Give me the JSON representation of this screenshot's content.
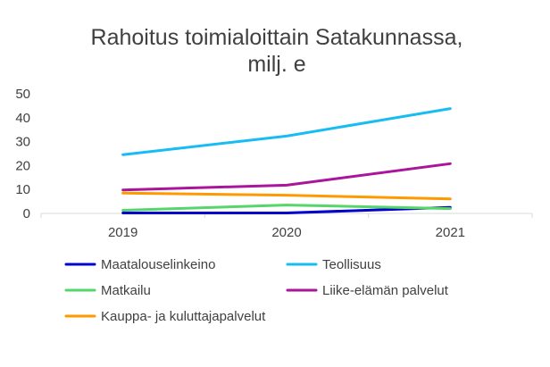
{
  "chart_data": {
    "type": "line",
    "title_lines": [
      "Rahoitus toimialoittain Satakunnassa,",
      "milj. e"
    ],
    "categories": [
      "2019",
      "2020",
      "2021"
    ],
    "y_ticks": [
      "0",
      "10",
      "20",
      "30",
      "40",
      "50"
    ],
    "ylim": [
      0,
      50
    ],
    "grid": false,
    "legend_position": "bottom",
    "series": [
      {
        "name": "Maatalouselinkeino",
        "color": "#0000cc",
        "values": [
          0.2,
          0.2,
          2.5
        ]
      },
      {
        "name": "Teollisuus",
        "color": "#17bdf2",
        "values": [
          24.5,
          32.3,
          43.8
        ]
      },
      {
        "name": "Matkailu",
        "color": "#55d66b",
        "values": [
          1.3,
          3.5,
          2.0
        ]
      },
      {
        "name": "Liike-elämän palvelut",
        "color": "#aa1599",
        "values": [
          9.8,
          11.8,
          20.8
        ]
      },
      {
        "name": "Kauppa- ja kuluttajapalvelut",
        "color": "#ff9900",
        "values": [
          8.5,
          7.6,
          6.1
        ]
      }
    ]
  }
}
